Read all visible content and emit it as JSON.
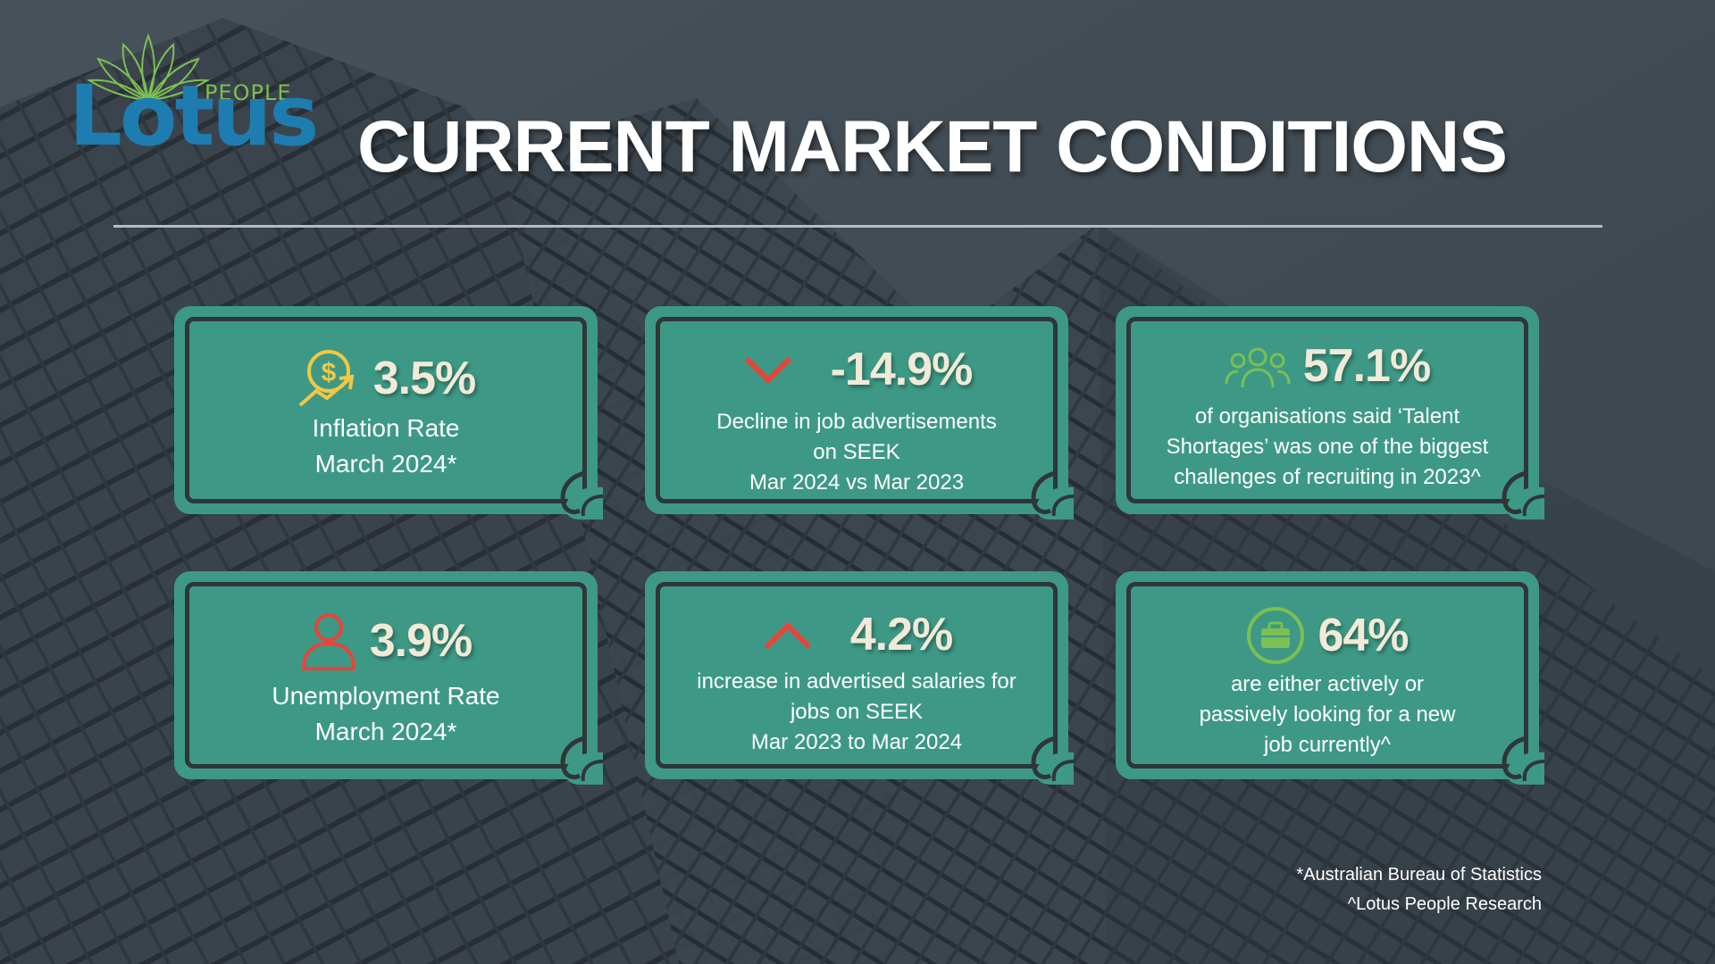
{
  "brand": {
    "logo_sub": "PEOPLE",
    "logo_word": "Lotus",
    "accent_blue": "#1e7db0",
    "accent_green": "#7cbf52"
  },
  "title": "CURRENT MARKET CONDITIONS",
  "colors": {
    "card": "#3d9985",
    "card_border": "#2f3638",
    "stat_text": "#f2ead8",
    "down_arrow": "#e8443a",
    "up_arrow": "#e8443a"
  },
  "cards": [
    {
      "icon": "dollar-trend-icon",
      "stat": "3.5%",
      "lines": [
        "Inflation Rate",
        "March 2024*"
      ]
    },
    {
      "icon": "chevron-down-icon",
      "stat": "-14.9%",
      "lines": [
        "Decline in job advertisements",
        "on SEEK",
        "Mar 2024 vs Mar 2023"
      ]
    },
    {
      "icon": "people-group-icon",
      "stat": "57.1%",
      "lines": [
        "of organisations said ‘Talent",
        "Shortages’ was one of the biggest",
        "challenges of recruiting in 2023^"
      ]
    },
    {
      "icon": "person-icon",
      "stat": "3.9%",
      "lines": [
        "Unemployment Rate",
        "March 2024*"
      ]
    },
    {
      "icon": "chevron-up-icon",
      "stat": "4.2%",
      "lines": [
        "increase in advertised salaries for",
        "jobs on SEEK",
        "Mar 2023 to Mar 2024"
      ]
    },
    {
      "icon": "briefcase-icon",
      "stat": "64%",
      "lines": [
        "are either actively or",
        "passively looking for a new",
        "job currently^"
      ]
    }
  ],
  "footnotes": [
    "*Australian Bureau of Statistics",
    "^Lotus People Research"
  ]
}
